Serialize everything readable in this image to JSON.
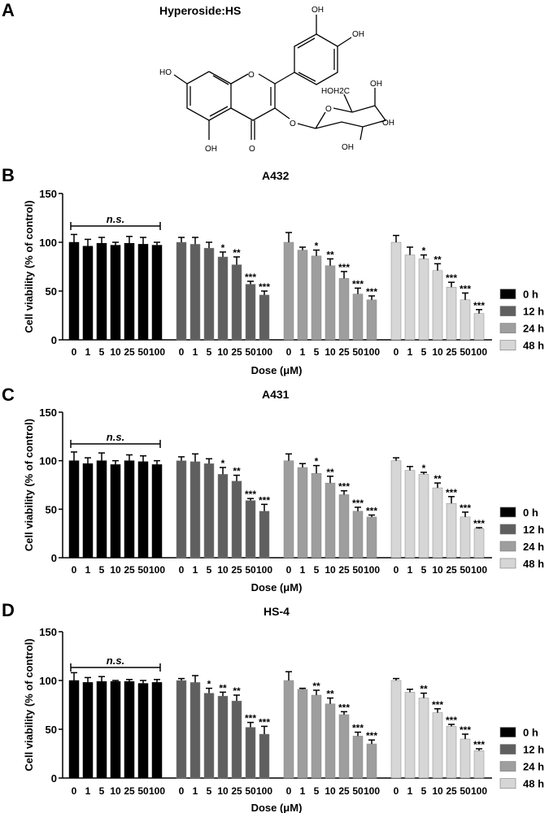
{
  "panel_a": {
    "letter": "A",
    "title": "Hyperoside:HS",
    "labels": [
      "OH",
      "OH",
      "HO",
      "O",
      "HOH2C",
      "OH",
      "O",
      "OH",
      "O",
      "OH",
      "O",
      "OH"
    ]
  },
  "legend": [
    {
      "label": "0 h",
      "color": "#000000"
    },
    {
      "label": "12 h",
      "color": "#5f5f5f"
    },
    {
      "label": "24 h",
      "color": "#9e9e9e"
    },
    {
      "label": "48 h",
      "color": "#d6d6d6"
    }
  ],
  "chart_data": [
    {
      "type": "bar",
      "panel": "B",
      "title": "A432",
      "xlabel": "Dose (μM)",
      "ylabel": "Cell viability (% of control)",
      "ylim": [
        0,
        150
      ],
      "yticks": [
        0,
        50,
        100,
        150
      ],
      "categories": [
        "0",
        "1",
        "5",
        "10",
        "25",
        "50",
        "100"
      ],
      "bracket_label": "n.s.",
      "series": [
        {
          "name": "0 h",
          "values": [
            100,
            96,
            99,
            97,
            99,
            98,
            97
          ],
          "errors": [
            8,
            7,
            6,
            3,
            7,
            7,
            3
          ],
          "sig": [
            "",
            "",
            "",
            "",
            "",
            "",
            ""
          ]
        },
        {
          "name": "12 h",
          "values": [
            100,
            98,
            94,
            85,
            77,
            57,
            46
          ],
          "errors": [
            5,
            7,
            6,
            5,
            8,
            3,
            4
          ],
          "sig": [
            "",
            "",
            "",
            "*",
            "**",
            "***",
            "***"
          ]
        },
        {
          "name": "24 h",
          "values": [
            100,
            92,
            86,
            76,
            63,
            47,
            41
          ],
          "errors": [
            10,
            3,
            6,
            7,
            7,
            6,
            4
          ],
          "sig": [
            "",
            "",
            "*",
            "**",
            "***",
            "***",
            "***"
          ]
        },
        {
          "name": "48 h",
          "values": [
            100,
            87,
            83,
            71,
            54,
            41,
            27
          ],
          "errors": [
            7,
            8,
            4,
            7,
            5,
            7,
            4
          ],
          "sig": [
            "",
            "",
            "*",
            "**",
            "***",
            "***",
            "***"
          ]
        }
      ]
    },
    {
      "type": "bar",
      "panel": "C",
      "title": "A431",
      "xlabel": "Dose (μM)",
      "ylabel": "Cell viability (% of control)",
      "ylim": [
        0,
        150
      ],
      "yticks": [
        0,
        50,
        100,
        150
      ],
      "categories": [
        "0",
        "1",
        "5",
        "10",
        "25",
        "50",
        "100"
      ],
      "bracket_label": "n.s.",
      "series": [
        {
          "name": "0 h",
          "values": [
            100,
            97,
            100,
            96,
            100,
            99,
            96
          ],
          "errors": [
            9,
            6,
            8,
            4,
            6,
            6,
            4
          ],
          "sig": [
            "",
            "",
            "",
            "",
            "",
            "",
            ""
          ]
        },
        {
          "name": "12 h",
          "values": [
            100,
            99,
            97,
            86,
            79,
            59,
            48
          ],
          "errors": [
            4,
            8,
            5,
            7,
            6,
            2,
            7
          ],
          "sig": [
            "",
            "",
            "",
            "*",
            "**",
            "***",
            "***"
          ]
        },
        {
          "name": "24 h",
          "values": [
            100,
            93,
            87,
            77,
            65,
            48,
            42
          ],
          "errors": [
            7,
            4,
            8,
            7,
            4,
            4,
            2
          ],
          "sig": [
            "",
            "",
            "*",
            "**",
            "***",
            "***",
            "***"
          ]
        },
        {
          "name": "48 h",
          "values": [
            100,
            90,
            86,
            72,
            56,
            42,
            30
          ],
          "errors": [
            3,
            4,
            2,
            5,
            7,
            5,
            1
          ],
          "sig": [
            "",
            "",
            "*",
            "**",
            "***",
            "***",
            "***"
          ]
        }
      ]
    },
    {
      "type": "bar",
      "panel": "D",
      "title": "HS-4",
      "xlabel": "Dose (μM)",
      "ylabel": "Cell viability (% of control)",
      "ylim": [
        0,
        150
      ],
      "yticks": [
        0,
        50,
        100,
        150
      ],
      "categories": [
        "0",
        "1",
        "5",
        "10",
        "25",
        "50",
        "100"
      ],
      "bracket_label": "n.s.",
      "series": [
        {
          "name": "0 h",
          "values": [
            100,
            98,
            99,
            99,
            99,
            97,
            98
          ],
          "errors": [
            8,
            5,
            5,
            1,
            2,
            3,
            3
          ],
          "sig": [
            "",
            "",
            "",
            "",
            "",
            "",
            ""
          ]
        },
        {
          "name": "12 h",
          "values": [
            100,
            98,
            87,
            84,
            79,
            52,
            45
          ],
          "errors": [
            2,
            7,
            5,
            4,
            6,
            5,
            8
          ],
          "sig": [
            "",
            "",
            "*",
            "**",
            "**",
            "***",
            "***"
          ]
        },
        {
          "name": "24 h",
          "values": [
            100,
            91,
            85,
            76,
            65,
            43,
            35
          ],
          "errors": [
            9,
            1,
            5,
            6,
            3,
            4,
            4
          ],
          "sig": [
            "",
            "",
            "**",
            "**",
            "***",
            "***",
            "***"
          ]
        },
        {
          "name": "48 h",
          "values": [
            100,
            88,
            82,
            67,
            53,
            40,
            28
          ],
          "errors": [
            2,
            3,
            5,
            4,
            2,
            5,
            2
          ],
          "sig": [
            "",
            "",
            "**",
            "***",
            "***",
            "***",
            "***"
          ]
        }
      ]
    }
  ]
}
